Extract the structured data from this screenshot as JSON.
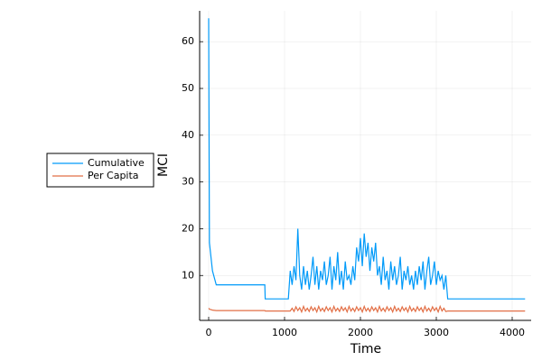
{
  "chart_data": {
    "type": "line",
    "x_label": "Time",
    "y_label": "MCI",
    "xlim": [
      -119,
      4250
    ],
    "ylim": [
      0.4,
      66.6
    ],
    "xticks": [
      0,
      1000,
      2000,
      3000,
      4000
    ],
    "yticks": [
      10,
      20,
      30,
      40,
      50,
      60
    ],
    "grid": true,
    "legend": "left",
    "x": [
      0,
      10,
      30,
      50,
      100,
      740,
      745,
      1050,
      1075,
      1100,
      1125,
      1150,
      1175,
      1200,
      1225,
      1250,
      1275,
      1300,
      1325,
      1350,
      1375,
      1400,
      1425,
      1450,
      1475,
      1500,
      1525,
      1550,
      1575,
      1600,
      1625,
      1650,
      1675,
      1700,
      1725,
      1750,
      1775,
      1800,
      1825,
      1850,
      1875,
      1900,
      1925,
      1950,
      1975,
      2000,
      2025,
      2050,
      2075,
      2100,
      2125,
      2150,
      2175,
      2200,
      2225,
      2250,
      2275,
      2300,
      2325,
      2350,
      2375,
      2400,
      2425,
      2450,
      2475,
      2500,
      2525,
      2550,
      2575,
      2600,
      2625,
      2650,
      2675,
      2700,
      2725,
      2750,
      2775,
      2800,
      2825,
      2850,
      2875,
      2900,
      2925,
      2950,
      2975,
      3000,
      3025,
      3050,
      3075,
      3100,
      3125,
      3150,
      4170
    ],
    "series": [
      {
        "name": "Cumulative",
        "color": "#009af9",
        "values": [
          65,
          17,
          14,
          11,
          8,
          8,
          5,
          5,
          11,
          8,
          12,
          9,
          20,
          10,
          7,
          12,
          8,
          11,
          7,
          10,
          14,
          8,
          12,
          7,
          11,
          9,
          13,
          8,
          10,
          14,
          7,
          12,
          9,
          15,
          8,
          11,
          7,
          13,
          9,
          10,
          8,
          12,
          9,
          16,
          13,
          18,
          12,
          19,
          14,
          17,
          11,
          16,
          13,
          17,
          10,
          12,
          8,
          14,
          9,
          11,
          7,
          13,
          9,
          12,
          8,
          10,
          14,
          7,
          11,
          9,
          12,
          8,
          10,
          7,
          11,
          8,
          12,
          9,
          13,
          7,
          11,
          14,
          8,
          10,
          13,
          8,
          11,
          9,
          10,
          7,
          10,
          5,
          5
        ]
      },
      {
        "name": "Per Capita",
        "color": "#e26f46",
        "values": [
          3,
          2.8,
          2.7,
          2.6,
          2.5,
          2.5,
          2.4,
          2.4,
          2.4,
          3.0,
          2.3,
          3.3,
          2.5,
          3.1,
          2.2,
          3.4,
          2.4,
          3.0,
          2.3,
          3.3,
          2.5,
          3.1,
          2.2,
          3.4,
          2.4,
          3.0,
          2.3,
          3.3,
          2.5,
          3.1,
          2.2,
          3.4,
          2.4,
          3.0,
          2.3,
          3.3,
          2.5,
          3.1,
          2.2,
          3.4,
          2.4,
          3.0,
          2.3,
          3.3,
          2.5,
          3.1,
          2.2,
          3.4,
          2.4,
          3.0,
          2.3,
          3.3,
          2.5,
          3.1,
          2.2,
          3.4,
          2.4,
          3.0,
          2.3,
          3.3,
          2.5,
          3.1,
          2.2,
          3.4,
          2.4,
          3.0,
          2.3,
          3.3,
          2.5,
          3.1,
          2.2,
          3.4,
          2.4,
          3.0,
          2.3,
          3.3,
          2.5,
          3.1,
          2.2,
          3.4,
          2.4,
          3.0,
          2.3,
          3.3,
          2.5,
          3.1,
          2.2,
          3.4,
          2.4,
          3.0,
          2.3,
          2.4,
          2.4
        ]
      }
    ]
  }
}
